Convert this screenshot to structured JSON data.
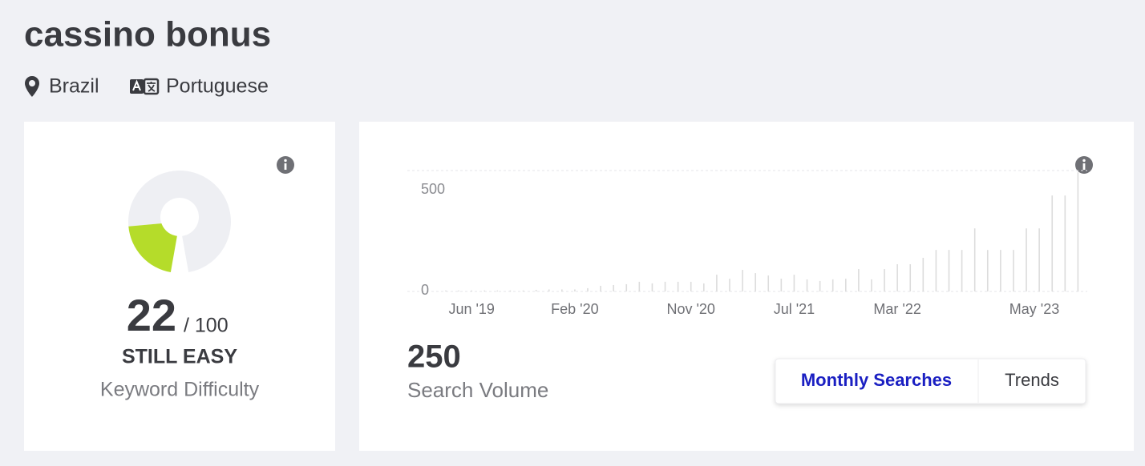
{
  "header": {
    "title": "cassino bonus",
    "location": "Brazil",
    "language": "Portuguese"
  },
  "difficulty": {
    "score": 22,
    "max": {
      "value": 100,
      "label": "/ 100"
    },
    "rating": "STILL EASY",
    "label": "Keyword Difficulty",
    "color": "#b5dc2a",
    "track_color": "#eeeff3"
  },
  "volume": {
    "value": 250,
    "label": "Search Volume"
  },
  "tabs": [
    {
      "label": "Monthly Searches",
      "active": true
    },
    {
      "label": "Trends",
      "active": false
    }
  ],
  "chart_data": {
    "type": "bar",
    "color": "#dcdcdc",
    "categories": [
      null,
      null,
      "Jun '19",
      null,
      null,
      null,
      null,
      null,
      null,
      null,
      "Feb '20",
      null,
      null,
      null,
      null,
      null,
      null,
      null,
      null,
      "Nov '20",
      null,
      null,
      null,
      null,
      null,
      null,
      null,
      "Jul '21",
      null,
      null,
      null,
      null,
      null,
      null,
      null,
      "Mar '22",
      null,
      null,
      null,
      null,
      null,
      null,
      null,
      null,
      null,
      null,
      null,
      null,
      null,
      "May '23"
    ],
    "values": [
      5,
      5,
      5,
      5,
      5,
      5,
      5,
      8,
      10,
      10,
      10,
      16,
      28,
      32,
      36,
      48,
      40,
      48,
      48,
      48,
      40,
      83,
      63,
      107,
      91,
      79,
      63,
      83,
      60,
      52,
      60,
      63,
      111,
      60,
      111,
      135,
      135,
      167,
      206,
      206,
      206,
      313,
      206,
      206,
      206,
      313,
      313,
      476,
      476,
      591
    ],
    "ylim": [
      0,
      600
    ],
    "yticks": [
      0,
      500
    ]
  }
}
